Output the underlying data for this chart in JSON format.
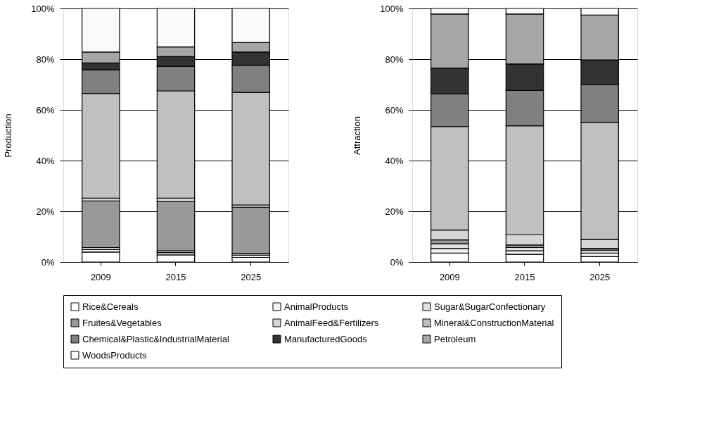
{
  "chart_data": [
    {
      "type": "bar",
      "stacked": true,
      "ylabel": "Production",
      "categories": [
        "2009",
        "2015",
        "2025"
      ],
      "ylim": [
        0,
        100
      ],
      "yticks": [
        {
          "value": 0,
          "label": "0%"
        },
        {
          "value": 20,
          "label": "20%"
        },
        {
          "value": 40,
          "label": "40%"
        },
        {
          "value": 60,
          "label": "60%"
        },
        {
          "value": 80,
          "label": "80%"
        },
        {
          "value": 100,
          "label": "100%"
        }
      ],
      "grid": "y",
      "legend": "bottom",
      "series": [
        {
          "name": "Rice&Cereals",
          "color": "#ffffff",
          "values": [
            3.9,
            2.8,
            1.8
          ]
        },
        {
          "name": "AnimalProducts",
          "color": "#f4f4f4",
          "values": [
            1.0,
            0.9,
            0.9
          ]
        },
        {
          "name": "Sugar&SugarConfectionary",
          "color": "#e0e0e0",
          "values": [
            0.8,
            0.7,
            0.6
          ]
        },
        {
          "name": "Fruites&Vegetables",
          "color": "#999999",
          "values": [
            18.4,
            19.4,
            18.3
          ]
        },
        {
          "name": "AnimalFeed&Fertilizers",
          "color": "#d6d6d6",
          "values": [
            1.1,
            1.4,
            0.9
          ]
        },
        {
          "name": "Mineral&ConstructionMaterial",
          "color": "#c0c0c0",
          "values": [
            41.3,
            42.3,
            44.4
          ]
        },
        {
          "name": "Chemical&Plastic&IndustrialMaterial",
          "color": "#808080",
          "values": [
            9.3,
            9.7,
            10.7
          ]
        },
        {
          "name": "ManufacturedGoods",
          "color": "#333333",
          "values": [
            2.7,
            3.8,
            5.2
          ]
        },
        {
          "name": "Petroleum",
          "color": "#a6a6a6",
          "values": [
            4.3,
            3.8,
            3.8
          ]
        },
        {
          "name": "WoodsProducts",
          "color": "#fafafa",
          "values": [
            17.2,
            15.2,
            13.4
          ]
        }
      ]
    },
    {
      "type": "bar",
      "stacked": true,
      "ylabel": "Attraction",
      "categories": [
        "2009",
        "2015",
        "2025"
      ],
      "ylim": [
        0,
        100
      ],
      "yticks": [
        {
          "value": 0,
          "label": "0%"
        },
        {
          "value": 20,
          "label": "20%"
        },
        {
          "value": 40,
          "label": "40%"
        },
        {
          "value": 60,
          "label": "60%"
        },
        {
          "value": 80,
          "label": "80%"
        },
        {
          "value": 100,
          "label": "100%"
        }
      ],
      "grid": "y",
      "legend": "bottom",
      "series": [
        {
          "name": "Rice&Cereals",
          "color": "#ffffff",
          "values": [
            3.5,
            3.0,
            2.1
          ]
        },
        {
          "name": "AnimalProducts",
          "color": "#f4f4f4",
          "values": [
            1.8,
            1.4,
            1.4
          ]
        },
        {
          "name": "Sugar&SugarConfectionary",
          "color": "#e0e0e0",
          "values": [
            1.9,
            1.3,
            1.1
          ]
        },
        {
          "name": "Fruites&Vegetables",
          "color": "#999999",
          "values": [
            1.5,
            1.0,
            0.8
          ]
        },
        {
          "name": "AnimalFeed&Fertilizers",
          "color": "#d6d6d6",
          "values": [
            3.9,
            4.0,
            3.5
          ]
        },
        {
          "name": "Mineral&ConstructionMaterial",
          "color": "#c0c0c0",
          "values": [
            40.8,
            43.0,
            46.2
          ]
        },
        {
          "name": "Chemical&Plastic&IndustrialMaterial",
          "color": "#808080",
          "values": [
            12.9,
            14.0,
            14.9
          ]
        },
        {
          "name": "ManufacturedGoods",
          "color": "#333333",
          "values": [
            10.2,
            10.4,
            9.7
          ]
        },
        {
          "name": "Petroleum",
          "color": "#a6a6a6",
          "values": [
            21.3,
            19.7,
            17.7
          ]
        },
        {
          "name": "WoodsProducts",
          "color": "#fafafa",
          "values": [
            2.2,
            2.2,
            2.6
          ]
        }
      ]
    }
  ]
}
